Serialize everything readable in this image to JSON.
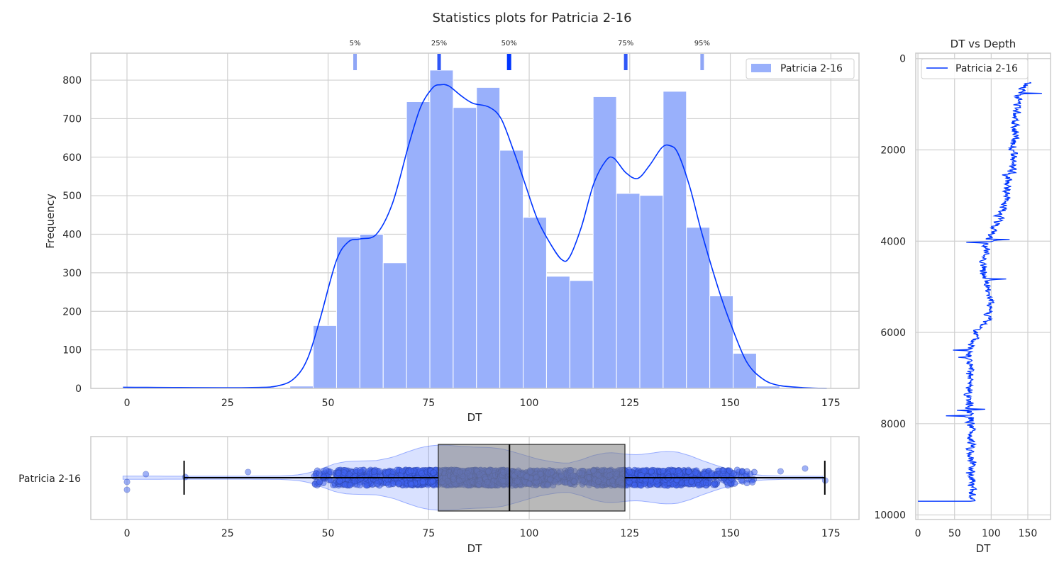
{
  "figure": {
    "title": "Statistics plots for Patricia 2-16"
  },
  "colors": {
    "main": "#0035ff",
    "bar": "#99b0fb",
    "box": "#b3b3b3",
    "grid": "#d0d0d0"
  },
  "chart_data": [
    {
      "type": "bar",
      "id": "histogram",
      "xlabel": "DT",
      "ylabel": "Frequency",
      "xlim": [
        -9,
        182
      ],
      "ylim": [
        0,
        870
      ],
      "xticks": [
        0,
        25,
        50,
        75,
        100,
        125,
        150,
        175
      ],
      "yticks": [
        0,
        100,
        200,
        300,
        400,
        500,
        600,
        700,
        800
      ],
      "grid": true,
      "legend": {
        "placement": "top-right",
        "entries": [
          "Patricia 2-16"
        ]
      },
      "bin_edges": [
        -0.1,
        5.7,
        11.5,
        17.3,
        23.1,
        28.9,
        34.7,
        40.5,
        46.3,
        52.1,
        57.9,
        63.7,
        69.5,
        75.3,
        81.1,
        86.9,
        92.7,
        98.5,
        104.3,
        110.1,
        115.9,
        121.7,
        127.5,
        133.3,
        139.1,
        144.9,
        150.7,
        156.5,
        162.3,
        168.1,
        173.9
      ],
      "counts": [
        3,
        3,
        1,
        1,
        1,
        1,
        1,
        6,
        163,
        393,
        400,
        326,
        744,
        826,
        729,
        781,
        618,
        444,
        291,
        280,
        757,
        506,
        501,
        771,
        418,
        240,
        91,
        6,
        1,
        2
      ],
      "kde": {
        "x": [
          -1,
          30,
          38,
          42,
          45,
          48,
          52,
          55,
          58,
          62,
          66,
          70,
          73,
          76,
          78,
          80,
          83,
          86,
          90,
          93,
          96,
          99,
          102,
          105,
          108,
          110,
          113,
          116,
          119,
          121,
          124,
          127,
          130,
          133,
          135,
          137,
          140,
          143,
          147,
          150,
          154,
          158,
          162,
          168,
          174
        ],
        "y": [
          3,
          2,
          8,
          30,
          80,
          180,
          330,
          380,
          388,
          400,
          480,
          630,
          730,
          780,
          788,
          785,
          760,
          740,
          730,
          700,
          620,
          530,
          440,
          380,
          335,
          340,
          420,
          530,
          590,
          598,
          560,
          545,
          580,
          625,
          630,
          610,
          520,
          400,
          260,
          170,
          70,
          25,
          8,
          2,
          0
        ]
      },
      "percentiles": [
        {
          "label": "5%",
          "value": 56.7
        },
        {
          "label": "25%",
          "value": 77.6
        },
        {
          "label": "50%",
          "value": 95.0
        },
        {
          "label": "75%",
          "value": 124.0
        },
        {
          "label": "95%",
          "value": 143.0
        }
      ]
    },
    {
      "type": "box",
      "id": "boxplot",
      "xlabel": "DT",
      "category": "Patricia 2-16",
      "xlim": [
        -9,
        182
      ],
      "xticks": [
        0,
        25,
        50,
        75,
        100,
        125,
        150,
        175
      ],
      "whisker_low": 14.2,
      "q1": 77.4,
      "median": 95.1,
      "q3": 123.8,
      "whisker_high": 173.5,
      "outliers": [
        0,
        0,
        4.7,
        14.5,
        30.1,
        162.5,
        168.6,
        173.6
      ],
      "points_range": [
        46,
        157
      ]
    },
    {
      "type": "line",
      "id": "depth-log",
      "title": "DT vs Depth",
      "xlabel": "DT",
      "xlim": [
        -3,
        181
      ],
      "ylim": [
        10100,
        -120
      ],
      "xticks": [
        0,
        50,
        100,
        150
      ],
      "yticks": [
        0,
        2000,
        4000,
        6000,
        8000,
        10000
      ],
      "grid": true,
      "legend": {
        "placement": "top-left",
        "entries": [
          "Patricia 2-16"
        ]
      },
      "trend": {
        "depth": [
          520,
          800,
          1200,
          1600,
          2000,
          2400,
          2800,
          3200,
          3500,
          3700,
          4000,
          4300,
          4600,
          5000,
          5400,
          5700,
          6000,
          6300,
          6600,
          7000,
          7400,
          7800,
          8200,
          8600,
          9000,
          9400,
          9700
        ],
        "dt": [
          150,
          138,
          135,
          133,
          130,
          128,
          122,
          118,
          110,
          105,
          95,
          92,
          88,
          95,
          100,
          95,
          80,
          72,
          70,
          70,
          70,
          72,
          72,
          72,
          74,
          74,
          72
        ]
      }
    }
  ]
}
